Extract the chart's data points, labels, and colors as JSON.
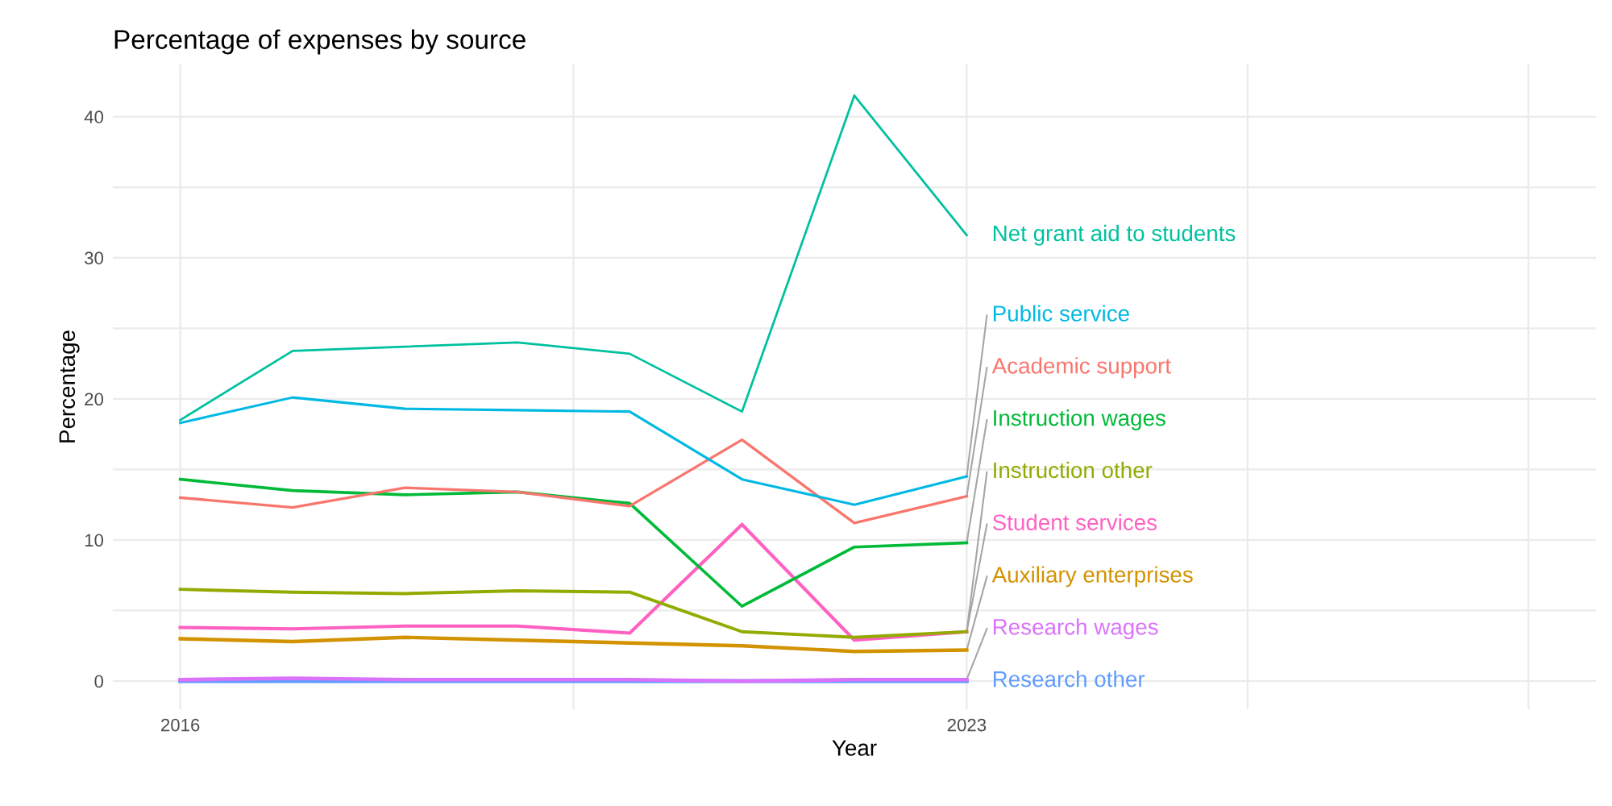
{
  "chart_data": {
    "type": "line",
    "title": "Percentage of expenses by source",
    "xlabel": "Year",
    "ylabel": "Percentage",
    "x": [
      2016,
      2017,
      2018,
      2019,
      2020,
      2021,
      2022,
      2023
    ],
    "xlim": [
      2015.4,
      2028.6
    ],
    "xticks": [
      2016,
      {
        "value": 2019.5,
        "label": null
      },
      2023,
      {
        "value": 2025.5,
        "label": null
      },
      {
        "value": 2028,
        "label": null
      }
    ],
    "ylim": [
      -2,
      43.7
    ],
    "yticks": [
      0,
      {
        "value": 5,
        "label": null
      },
      10,
      {
        "value": 15,
        "label": null
      },
      20,
      {
        "value": 25,
        "label": null
      },
      30,
      {
        "value": 35,
        "label": null
      },
      40
    ],
    "grid": true,
    "legend": false,
    "line_style": "solid",
    "marker": "none",
    "series": [
      {
        "name": "Net grant aid to students",
        "color": "#00c19f",
        "values": [
          18.5,
          23.4,
          23.7,
          24.0,
          23.2,
          19.1,
          41.5,
          31.6
        ]
      },
      {
        "name": "Public service",
        "color": "#00b9e3",
        "values": [
          18.3,
          20.1,
          19.3,
          19.2,
          19.1,
          14.3,
          12.5,
          14.5
        ]
      },
      {
        "name": "Academic support",
        "color": "#f8766d",
        "values": [
          13.0,
          12.3,
          13.7,
          13.4,
          12.4,
          17.1,
          11.2,
          13.1
        ]
      },
      {
        "name": "Instruction wages",
        "color": "#00ba38",
        "values": [
          14.3,
          13.5,
          13.2,
          13.4,
          12.6,
          5.3,
          9.5,
          9.8
        ]
      },
      {
        "name": "Instruction other",
        "color": "#93aa00",
        "values": [
          6.5,
          6.3,
          6.2,
          6.4,
          6.3,
          3.5,
          3.1,
          3.5
        ]
      },
      {
        "name": "Student services",
        "color": "#ff61c3",
        "values": [
          3.8,
          3.7,
          3.9,
          3.9,
          3.4,
          11.1,
          2.9,
          3.5
        ]
      },
      {
        "name": "Auxiliary enterprises",
        "color": "#d39200",
        "values": [
          3.0,
          2.8,
          3.1,
          2.9,
          2.7,
          2.5,
          2.1,
          2.2
        ]
      },
      {
        "name": "Research wages",
        "color": "#db72fb",
        "values": [
          0.1,
          0.2,
          0.1,
          0.1,
          0.1,
          0.0,
          0.1,
          0.1
        ]
      },
      {
        "name": "Research other",
        "color": "#619cff",
        "values": [
          0.0,
          0.0,
          0.0,
          0.0,
          0.0,
          0.0,
          0.0,
          0.0
        ]
      }
    ]
  }
}
